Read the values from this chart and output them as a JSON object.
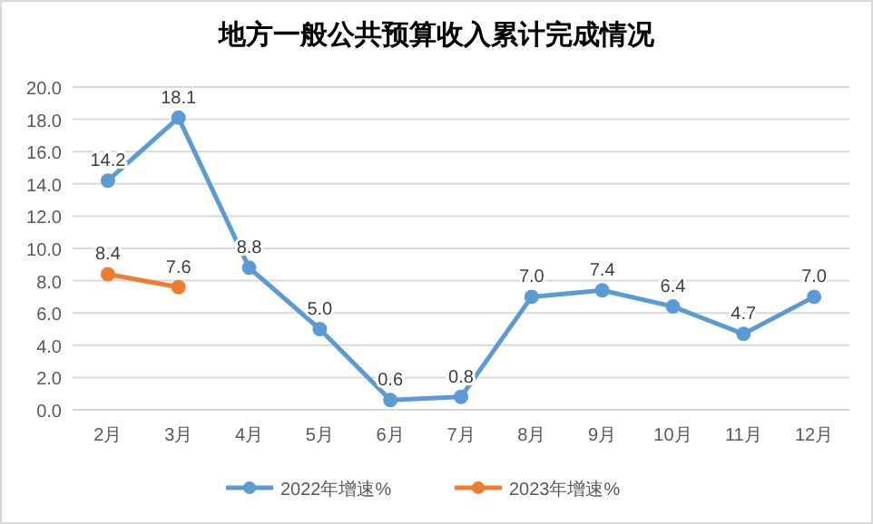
{
  "chart_data": {
    "type": "line",
    "title": "地方一般公共预算收入累计完成情况",
    "categories": [
      "2月",
      "3月",
      "4月",
      "5月",
      "6月",
      "7月",
      "8月",
      "9月",
      "10月",
      "11月",
      "12月"
    ],
    "series": [
      {
        "name": "2022年增速%",
        "color": "#5b9bd5",
        "values": [
          14.2,
          18.1,
          8.8,
          5.0,
          0.6,
          0.8,
          7.0,
          7.4,
          6.4,
          4.7,
          7.0
        ],
        "value_labels": [
          "14.2",
          "18.1",
          "8.8",
          "5.0",
          "0.6",
          "0.8",
          "7.0",
          "7.4",
          "6.4",
          "4.7",
          "7.0"
        ]
      },
      {
        "name": "2023年增速%",
        "color": "#ed7d31",
        "values": [
          8.4,
          7.6,
          null,
          null,
          null,
          null,
          null,
          null,
          null,
          null,
          null
        ],
        "value_labels": [
          "8.4",
          "7.6",
          null,
          null,
          null,
          null,
          null,
          null,
          null,
          null,
          null
        ]
      }
    ],
    "ylim": [
      0,
      20
    ],
    "yticks": [
      {
        "value": 0,
        "label": "0.0"
      },
      {
        "value": 2,
        "label": "2.0"
      },
      {
        "value": 4,
        "label": "4.0"
      },
      {
        "value": 6,
        "label": "6.0"
      },
      {
        "value": 8,
        "label": "8.0"
      },
      {
        "value": 10,
        "label": "10.0"
      },
      {
        "value": 12,
        "label": "12.0"
      },
      {
        "value": 14,
        "label": "14.0"
      },
      {
        "value": 16,
        "label": "16.0"
      },
      {
        "value": 18,
        "label": "18.0"
      },
      {
        "value": 20,
        "label": "20.0"
      }
    ],
    "grid": "y",
    "legend": "bottom",
    "marker": "circle",
    "line_style": "solid"
  }
}
